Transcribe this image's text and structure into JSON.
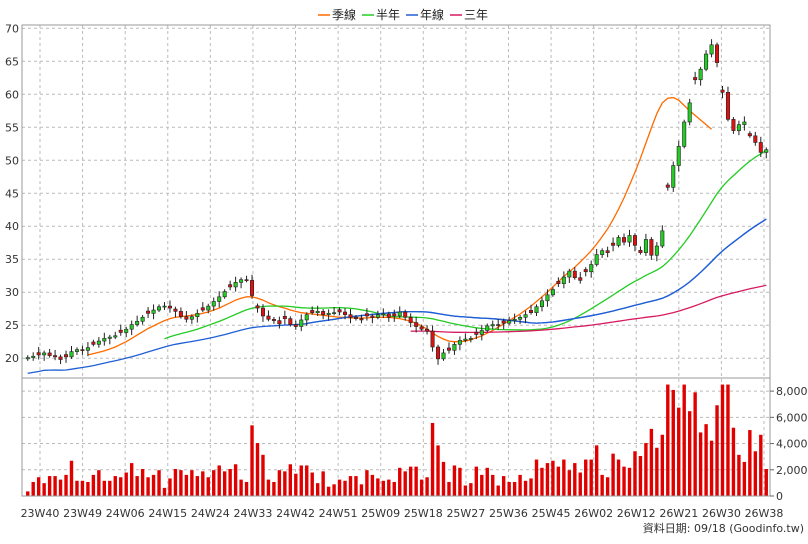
{
  "legend": {
    "ma_quarter": "季線",
    "ma_half": "半年",
    "ma_year": "年線",
    "ma_3year": "三年"
  },
  "footer_credit": "資料日期: 09/18  (Goodinfo.tw)",
  "colors": {
    "up": "#22cc22",
    "down": "#dd1111",
    "ma_quarter": "#ff6a00",
    "ma_half": "#22cc22",
    "ma_year": "#1f5fd6",
    "ma_3year": "#d81b60",
    "volume": "#e00000",
    "grid": "#bbbbbb"
  },
  "chart_data": {
    "type": "candlestick",
    "price_axis": {
      "min": 17,
      "max": 70.5,
      "ticks": [
        20,
        25,
        30,
        35,
        40,
        45,
        50,
        55,
        60,
        65,
        70
      ]
    },
    "volume_axis": {
      "min": 0,
      "max": 9000,
      "ticks": [
        "0",
        "2,000",
        "4,000",
        "6,000",
        "8,000"
      ],
      "tick_values": [
        0,
        2000,
        4000,
        6000,
        8000
      ]
    },
    "x_labels": [
      "23W40",
      "23W49",
      "24W06",
      "24W15",
      "24W24",
      "24W33",
      "24W42",
      "24W51",
      "25W09",
      "25W18",
      "25W27",
      "25W36",
      "25W45",
      "26W02",
      "26W12",
      "26W21",
      "26W30",
      "26W38"
    ],
    "close": [
      20.1,
      20.3,
      20.5,
      20.8,
      20.4,
      20.2,
      19.8,
      20.2,
      21.0,
      21.3,
      21.2,
      21.6,
      22.1,
      22.6,
      23.0,
      23.2,
      23.4,
      23.9,
      24.4,
      25.1,
      25.6,
      26.2,
      26.8,
      27.3,
      27.8,
      27.9,
      27.6,
      27.1,
      26.3,
      25.9,
      26.3,
      26.8,
      27.3,
      27.9,
      28.6,
      29.3,
      30.1,
      30.8,
      31.5,
      31.9,
      31.8,
      29.5,
      27.6,
      26.4,
      25.9,
      25.7,
      25.2,
      26.0,
      25.1,
      24.8,
      25.8,
      26.6,
      26.9,
      27.1,
      26.6,
      26.8,
      26.9,
      27.0,
      26.6,
      26.2,
      26.0,
      25.8,
      26.4,
      26.2,
      26.6,
      26.7,
      26.2,
      26.4,
      27.0,
      26.2,
      25.4,
      24.8,
      24.4,
      24.1,
      21.7,
      19.9,
      20.8,
      21.2,
      22.1,
      22.7,
      22.9,
      23.0,
      23.6,
      24.2,
      24.9,
      25.1,
      25.0,
      25.3,
      25.7,
      25.9,
      26.2,
      26.6,
      26.9,
      27.8,
      28.7,
      29.6,
      30.4,
      31.3,
      32.3,
      33.2,
      32.2,
      31.8,
      33.1,
      34.2,
      35.7,
      36.3,
      36.0,
      37.1,
      38.3,
      37.6,
      38.6,
      37.1,
      36.0,
      38.0,
      35.6,
      37.0,
      39.3,
      45.9,
      49.2,
      52.1,
      55.8,
      58.7,
      62.2,
      63.8,
      66.1,
      67.5,
      64.8,
      60.3,
      56.2,
      54.5,
      55.4,
      55.8,
      53.7,
      52.7,
      51.2,
      51.6
    ],
    "ma_quarter": [
      null,
      null,
      null,
      null,
      null,
      null,
      null,
      null,
      null,
      null,
      null,
      20.5,
      20.7,
      20.9,
      21.1,
      21.4,
      21.7,
      22.1,
      22.5,
      23.0,
      23.5,
      24.0,
      24.5,
      24.9,
      25.3,
      25.7,
      26.0,
      26.2,
      26.3,
      26.4,
      26.5,
      26.6,
      26.8,
      27.0,
      27.3,
      27.6,
      28.0,
      28.4,
      28.8,
      29.1,
      29.3,
      29.3,
      29.1,
      28.8,
      28.4,
      28.1,
      27.8,
      27.6,
      27.3,
      27.1,
      26.9,
      26.8,
      26.7,
      26.6,
      26.5,
      26.4,
      26.3,
      26.2,
      26.2,
      26.1,
      26.1,
      26.1,
      26.1,
      26.2,
      26.2,
      26.2,
      26.2,
      26.1,
      26.0,
      25.8,
      25.6,
      25.3,
      24.9,
      24.4,
      23.8,
      23.3,
      22.9,
      22.6,
      22.5,
      22.5,
      22.6,
      22.8,
      23.1,
      23.4,
      23.8,
      24.2,
      24.7,
      25.2,
      25.7,
      26.2,
      26.7,
      27.3,
      27.9,
      28.6,
      29.3,
      30.0,
      30.8,
      31.6,
      32.4,
      33.1,
      33.8,
      34.6,
      35.4,
      36.3,
      37.3,
      38.4,
      39.6,
      41.0,
      42.6,
      44.3,
      46.2,
      48.2,
      50.3,
      52.6,
      54.9,
      57.1,
      58.7,
      59.4,
      59.5,
      59.1,
      58.3,
      57.5,
      56.8,
      56.1,
      55.4,
      54.7
    ]
  }
}
